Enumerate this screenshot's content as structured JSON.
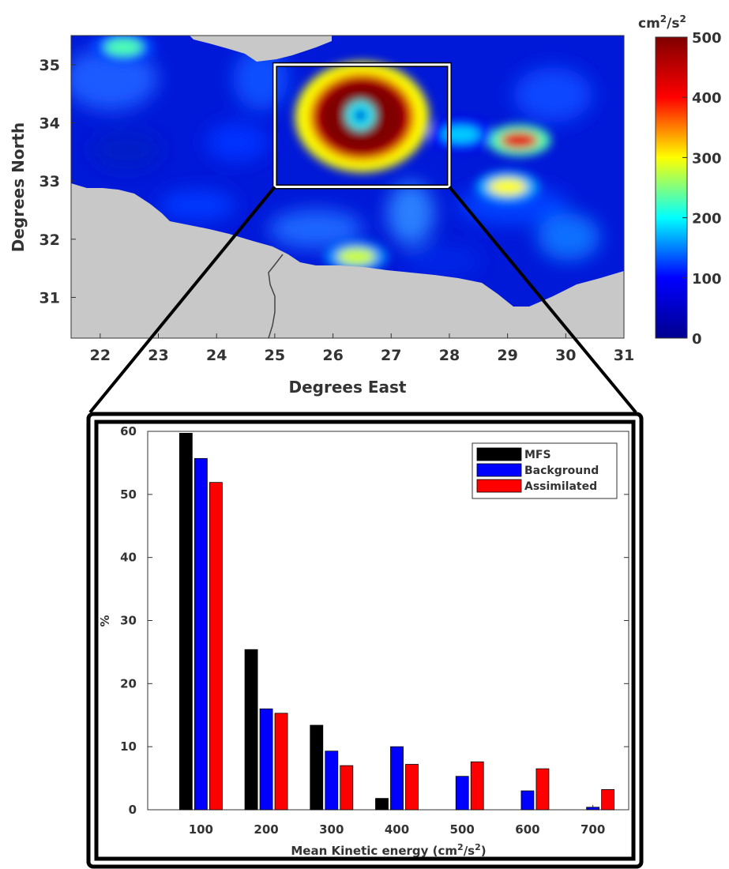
{
  "chart_data": [
    {
      "type": "heatmap",
      "title": "",
      "xlabel": "Degrees East",
      "ylabel": "Degrees North",
      "xlim": [
        21.5,
        31
      ],
      "ylim": [
        30.3,
        35.5
      ],
      "x_ticks": [
        "22",
        "23",
        "24",
        "25",
        "26",
        "27",
        "28",
        "29",
        "30",
        "31"
      ],
      "y_ticks": [
        "31",
        "32",
        "33",
        "34",
        "35"
      ],
      "colorbar": {
        "unit_base": "cm",
        "unit_sup1": "2",
        "unit_mid": "/s",
        "unit_sup2": "2",
        "range": [
          0,
          500
        ],
        "ticks": [
          "0",
          "100",
          "200",
          "300",
          "400",
          "500"
        ],
        "colormap": [
          "#00008f",
          "#0000ff",
          "#00ffff",
          "#ffff00",
          "#ff0000",
          "#800000"
        ]
      },
      "land_color": "#c8c8c8",
      "inset_box": {
        "lon": [
          25,
          28
        ],
        "lat": [
          32.9,
          35.0
        ]
      },
      "features": [
        {
          "lon": 26.5,
          "lat": 34.1,
          "level": 500,
          "shape": "ring"
        },
        {
          "lon": 29.2,
          "lat": 33.7,
          "level": 420,
          "shape": "blob"
        },
        {
          "lon": 29.0,
          "lat": 32.9,
          "level": 300,
          "shape": "blob"
        },
        {
          "lon": 26.4,
          "lat": 31.7,
          "level": 280,
          "shape": "blob"
        },
        {
          "lon": 22.4,
          "lat": 35.3,
          "level": 230,
          "shape": "blob"
        },
        {
          "lon": 28.2,
          "lat": 33.8,
          "level": 180,
          "shape": "blob"
        }
      ]
    },
    {
      "type": "bar",
      "title": "",
      "xlabel_base": "Mean Kinetic energy (cm",
      "xlabel_sup1": "2",
      "xlabel_mid": "/s",
      "xlabel_sup2": "2",
      "xlabel_end": ")",
      "ylabel": "%",
      "ylim": [
        0,
        60
      ],
      "y_ticks": [
        "0",
        "10",
        "20",
        "30",
        "40",
        "50",
        "60"
      ],
      "categories": [
        "100",
        "200",
        "300",
        "400",
        "500",
        "600",
        "700"
      ],
      "series": [
        {
          "name": "MFS",
          "color": "#000000",
          "values": [
            59.7,
            25.4,
            13.4,
            1.8,
            0,
            0,
            0
          ]
        },
        {
          "name": "Background",
          "color": "#0000ff",
          "values": [
            55.7,
            16.0,
            9.3,
            10.0,
            5.3,
            3.0,
            0.4
          ]
        },
        {
          "name": "Assimilated",
          "color": "#ff0000",
          "values": [
            51.9,
            15.3,
            7.0,
            7.2,
            7.6,
            6.5,
            3.2
          ]
        }
      ],
      "legend": "top-right",
      "grid": false
    }
  ]
}
